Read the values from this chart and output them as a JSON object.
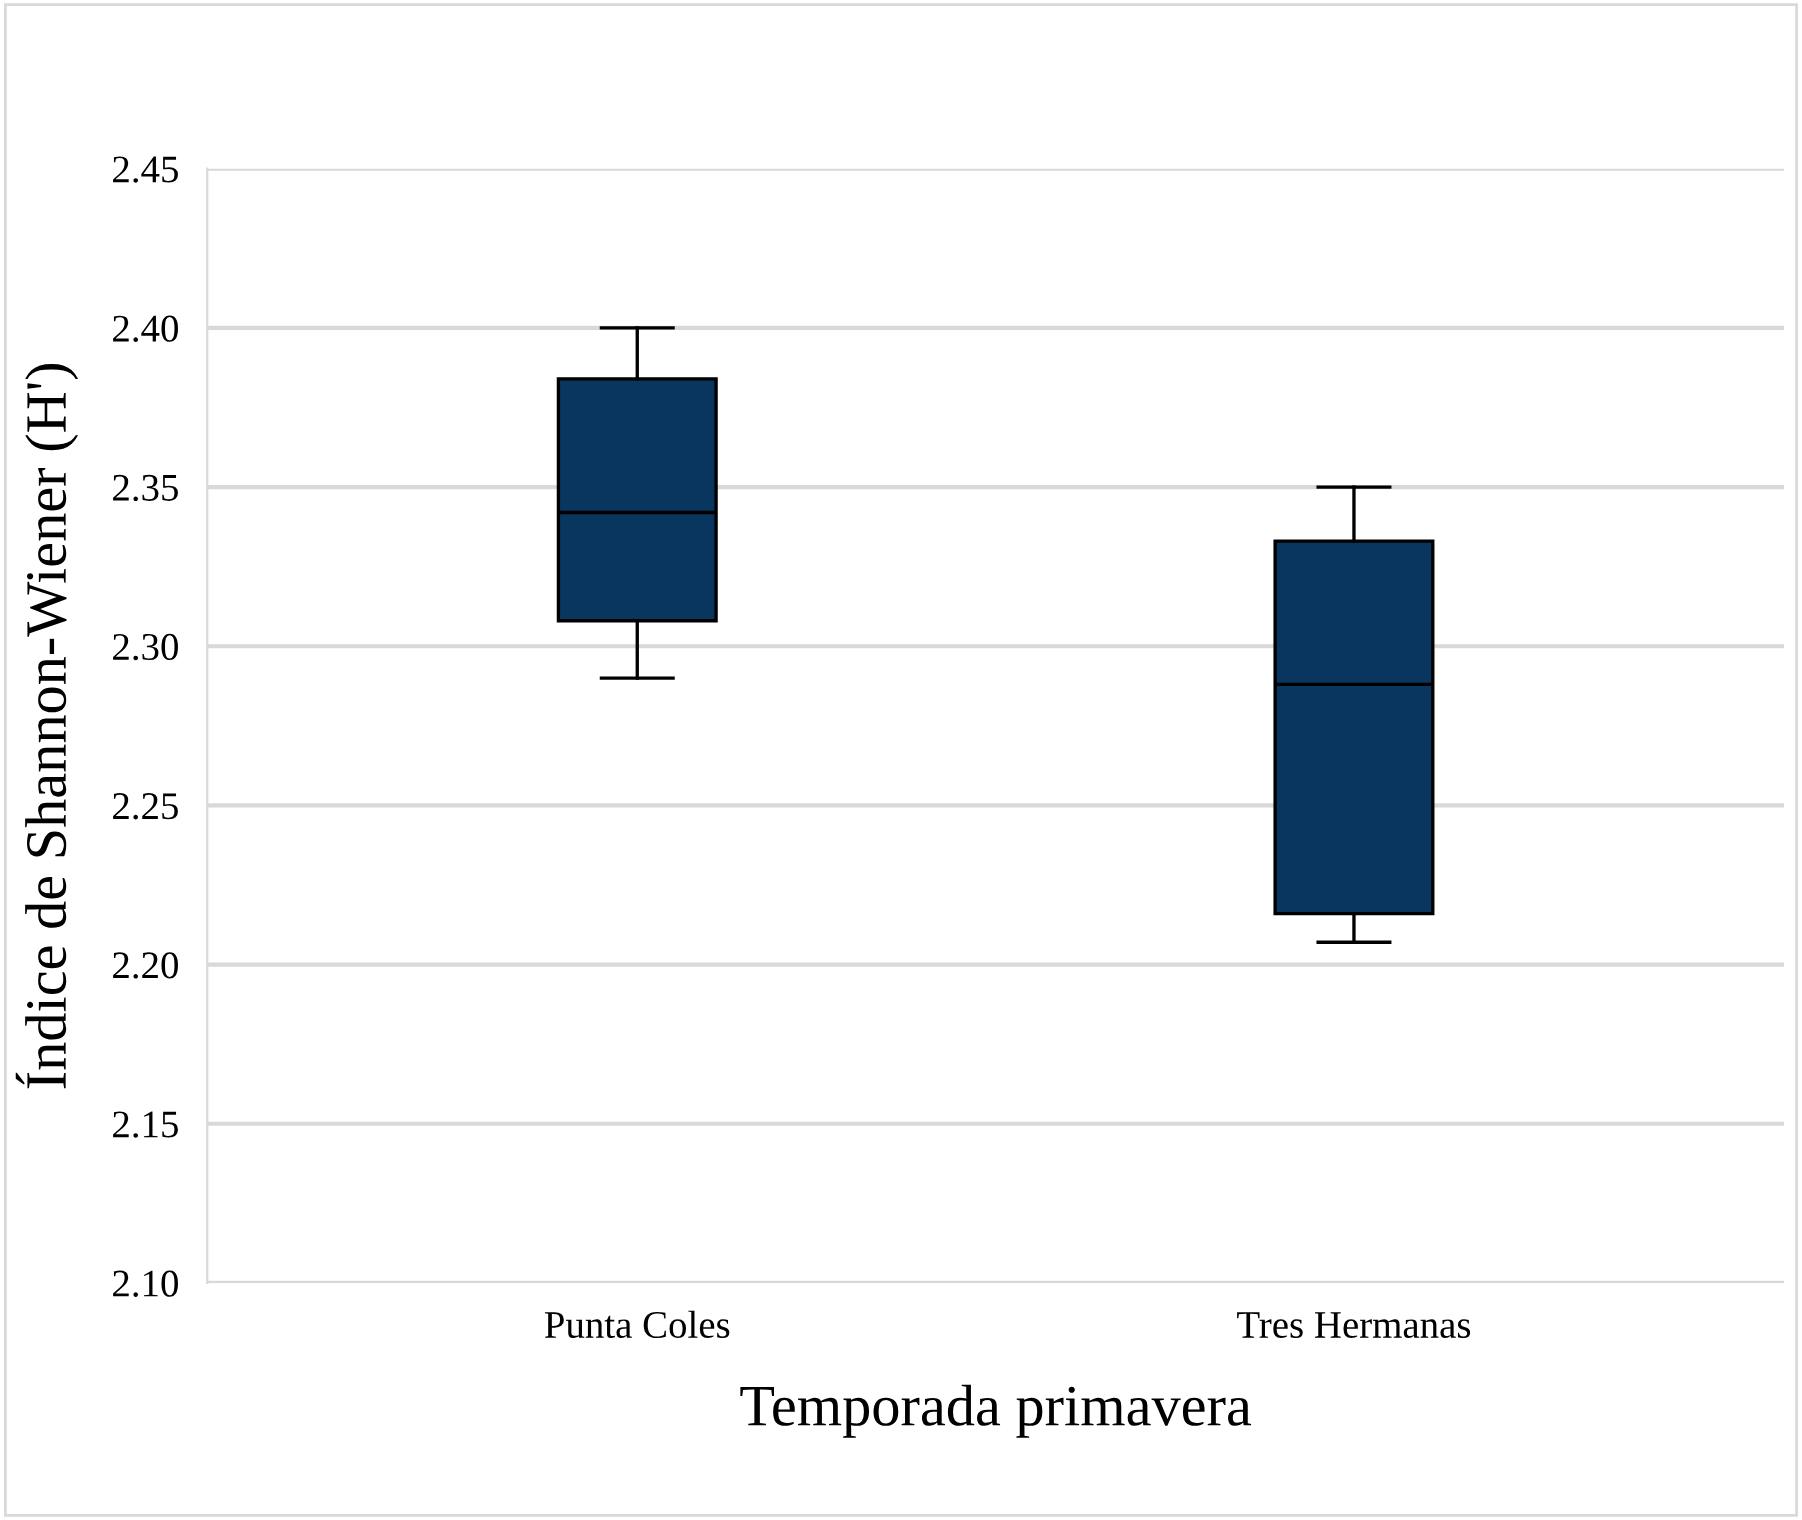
{
  "chart_data": {
    "type": "box",
    "xlabel": "Temporada primavera",
    "ylabel": "Índice de Shannon-Wiener (H')",
    "categories": [
      "Punta Coles",
      "Tres Hermanas"
    ],
    "series": [
      {
        "color": "#08365f",
        "boxes": [
          {
            "low": 2.29,
            "q1": 2.308,
            "median": 2.342,
            "q3": 2.384,
            "high": 2.4
          },
          {
            "low": 2.207,
            "q1": 2.216,
            "median": 2.288,
            "q3": 2.333,
            "high": 2.35
          }
        ]
      }
    ],
    "ylim": [
      2.1,
      2.45
    ],
    "yticks": [
      {
        "value": 2.1,
        "label": "2.10"
      },
      {
        "value": 2.15,
        "label": "2.15"
      },
      {
        "value": 2.2,
        "label": "2.20"
      },
      {
        "value": 2.25,
        "label": "2.25"
      },
      {
        "value": 2.3,
        "label": "2.30"
      },
      {
        "value": 2.35,
        "label": "2.35"
      },
      {
        "value": 2.4,
        "label": "2.40"
      },
      {
        "value": 2.45,
        "label": "2.45"
      }
    ],
    "grid": "y",
    "legend": false
  }
}
